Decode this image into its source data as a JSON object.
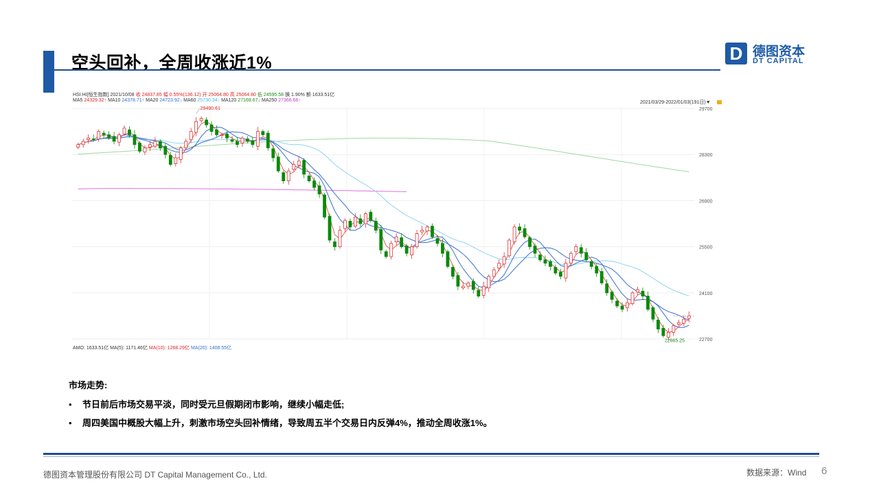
{
  "slide": {
    "title": "空头回补，全周收涨近1%",
    "page_number": "6",
    "footer_company": "德图资本管理股份有限公司  DT Capital Management  Co., Ltd.",
    "footer_source": "数据来源：Wind"
  },
  "logo": {
    "mark": "D",
    "cn": "德图资本",
    "en": "DT CAPITAL"
  },
  "chart_header": {
    "line1": [
      {
        "text": "HSI.HI[恒生指数]",
        "color": "plain"
      },
      {
        "text": "2021/10/08",
        "color": "plain"
      },
      {
        "text": "收 24837.85",
        "color": "red"
      },
      {
        "text": "幅 0.55%(136.12)",
        "color": "red"
      },
      {
        "text": "开 25064.80",
        "color": "red"
      },
      {
        "text": "高 25064.80",
        "color": "red"
      },
      {
        "text": "低 24595.58",
        "color": "grn"
      },
      {
        "text": "换 1.90%",
        "color": "plain"
      },
      {
        "text": "额 1633.51亿",
        "color": "plain"
      }
    ],
    "line2": [
      {
        "text": "MA5",
        "color": "plain"
      },
      {
        "text": "24329.32↑",
        "color": "red"
      },
      {
        "text": "MA10",
        "color": "plain"
      },
      {
        "text": "24378.71↑",
        "color": "blu"
      },
      {
        "text": "MA20",
        "color": "plain"
      },
      {
        "text": "24723.92↓",
        "color": "blu"
      },
      {
        "text": "MA60",
        "color": "plain"
      },
      {
        "text": "25730.34↓",
        "color": "sky"
      },
      {
        "text": "MA120",
        "color": "plain"
      },
      {
        "text": "27169.67↓",
        "color": "grn"
      },
      {
        "text": "MA250",
        "color": "plain"
      },
      {
        "text": "27366.66↑",
        "color": "pur"
      }
    ],
    "range": "2021/03/29-2022/01/03(191日)▼",
    "bottom": [
      {
        "text": "AMO: 1633.51亿",
        "color": "plain"
      },
      {
        "text": "MA(5): 1171.46亿",
        "color": "plain"
      },
      {
        "text": "MA(10): 1268.29亿",
        "color": "red"
      },
      {
        "text": "MA(20): 1408.55亿",
        "color": "blu"
      }
    ]
  },
  "chart_data": {
    "type": "candlestick",
    "title": "HSI.HI[恒生指数]",
    "period": "2021/03/29-2022/01/03(191日)",
    "y_ticks": [
      29700,
      28300,
      26900,
      25500,
      24100,
      22700
    ],
    "ylim": [
      22700,
      29700
    ],
    "annotations": [
      {
        "label": "29490.61",
        "value": 29490.61
      },
      {
        "label": "22665.25",
        "value": 22665.25
      }
    ],
    "series": [
      {
        "name": "MA5",
        "color": "#e06060",
        "value_last": "24329.32↑"
      },
      {
        "name": "MA10",
        "color": "#3a6fd0",
        "value_last": "24378.71↑"
      },
      {
        "name": "MA20",
        "color": "#3a6fd0",
        "value_last": "24723.92↓"
      },
      {
        "name": "MA60",
        "color": "#8fd4f0",
        "value_last": "25730.34↓"
      },
      {
        "name": "MA120",
        "color": "#9fd89f",
        "value_last": "27169.67↓"
      },
      {
        "name": "MA250",
        "color": "#e070e0",
        "value_last": "27366.66↑"
      }
    ],
    "close_path": [
      28600,
      28700,
      28800,
      28750,
      29000,
      28900,
      28800,
      28700,
      28900,
      29100,
      28900,
      28600,
      28400,
      28500,
      28600,
      28700,
      28500,
      28300,
      28000,
      28200,
      28500,
      28700,
      29000,
      29300,
      29400,
      29200,
      29000,
      28900,
      28900,
      28800,
      28700,
      28600,
      28800,
      28700,
      28600,
      29000,
      28900,
      28500,
      28200,
      27800,
      27500,
      27800,
      28000,
      28100,
      27700,
      27500,
      27300,
      27100,
      26400,
      25700,
      25500,
      26000,
      26300,
      26100,
      26400,
      26200,
      26500,
      26300,
      26000,
      25400,
      25200,
      25600,
      25800,
      25500,
      25300,
      25500,
      25900,
      26000,
      26100,
      25800,
      25600,
      25300,
      24900,
      24600,
      24300,
      24300,
      24400,
      24200,
      24000,
      24300,
      24600,
      24800,
      25000,
      25200,
      25700,
      26100,
      26000,
      25800,
      25500,
      25300,
      25100,
      25000,
      24900,
      24700,
      24600,
      25000,
      25300,
      25500,
      25300,
      25100,
      24900,
      24700,
      24400,
      24100,
      23900,
      23700,
      23600,
      23800,
      24100,
      24200,
      24000,
      23600,
      23300,
      23000,
      22800,
      22900,
      23100,
      23200,
      23300,
      23400
    ]
  },
  "market": {
    "heading": "市场走势:",
    "bullets": [
      "节日前后市场交易平淡，同时受元旦假期闭市影响，继续小幅走低;",
      "周四美国中概股大幅上升，刺激市场空头回补情绪，导致周五半个交易日内反弹4%，推动全周收涨1%。"
    ]
  }
}
